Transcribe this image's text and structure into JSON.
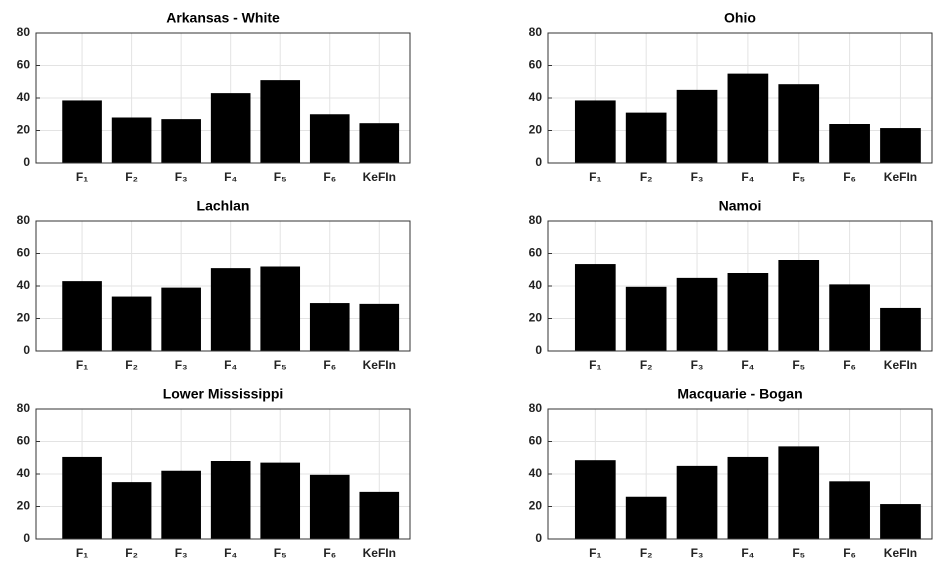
{
  "chart_data": [
    {
      "type": "bar",
      "title": "Arkansas - White",
      "categories": [
        "F₁",
        "F₂",
        "F₃",
        "F₄",
        "F₅",
        "F₆",
        "KeFIn"
      ],
      "values": [
        38.5,
        28,
        27,
        43,
        51,
        30,
        24.5
      ],
      "color": "#000000",
      "ylim": [
        0,
        80
      ],
      "yticks": [
        0,
        20,
        40,
        60,
        80
      ],
      "grid": true
    },
    {
      "type": "bar",
      "title": "Ohio",
      "categories": [
        "F₁",
        "F₂",
        "F₃",
        "F₄",
        "F₅",
        "F₆",
        "KeFIn"
      ],
      "values": [
        38.5,
        31,
        45,
        55,
        48.5,
        24,
        21.5
      ],
      "color": "#000000",
      "ylim": [
        0,
        80
      ],
      "yticks": [
        0,
        20,
        40,
        60,
        80
      ],
      "grid": true
    },
    {
      "type": "bar",
      "title": "Lachlan",
      "categories": [
        "F₁",
        "F₂",
        "F₃",
        "F₄",
        "F₅",
        "F₆",
        "KeFIn"
      ],
      "values": [
        43,
        33.5,
        39,
        51,
        52,
        29.5,
        29
      ],
      "color": "#000000",
      "ylim": [
        0,
        80
      ],
      "yticks": [
        0,
        20,
        40,
        60,
        80
      ],
      "grid": true
    },
    {
      "type": "bar",
      "title": "Namoi",
      "categories": [
        "F₁",
        "F₂",
        "F₃",
        "F₄",
        "F₅",
        "F₆",
        "KeFIn"
      ],
      "values": [
        53.5,
        39.5,
        45,
        48,
        56,
        41,
        26.5
      ],
      "color": "#000000",
      "ylim": [
        0,
        80
      ],
      "yticks": [
        0,
        20,
        40,
        60,
        80
      ],
      "grid": true
    },
    {
      "type": "bar",
      "title": "Lower Mississippi",
      "categories": [
        "F₁",
        "F₂",
        "F₃",
        "F₄",
        "F₅",
        "F₆",
        "KeFIn"
      ],
      "values": [
        50.5,
        35,
        42,
        48,
        47,
        39.5,
        29
      ],
      "color": "#000000",
      "ylim": [
        0,
        80
      ],
      "yticks": [
        0,
        20,
        40,
        60,
        80
      ],
      "grid": true
    },
    {
      "type": "bar",
      "title": "Macquarie - Bogan",
      "categories": [
        "F₁",
        "F₂",
        "F₃",
        "F₄",
        "F₅",
        "F₆",
        "KeFIn"
      ],
      "values": [
        48.5,
        26,
        45,
        50.5,
        57,
        35.5,
        21.5
      ],
      "color": "#000000",
      "ylim": [
        0,
        80
      ],
      "yticks": [
        0,
        20,
        40,
        60,
        80
      ],
      "grid": true
    }
  ]
}
